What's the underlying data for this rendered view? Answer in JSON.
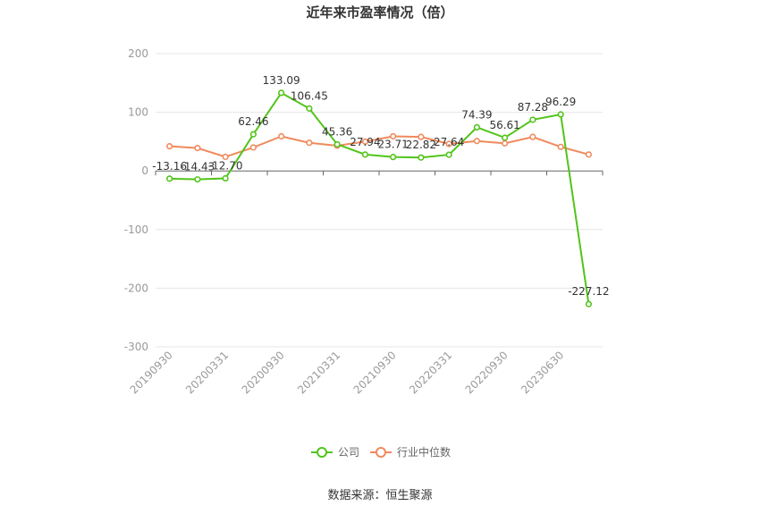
{
  "chart_data": {
    "type": "line",
    "title": "近年来市盈率情况（倍）",
    "source": "数据来源：恒生聚源",
    "ylim": [
      -300,
      200
    ],
    "yticks": [
      200,
      100,
      0,
      -100,
      -200,
      -300
    ],
    "xtick_labels": [
      "20190930",
      "20200331",
      "20200930",
      "20210331",
      "20210930",
      "20220331",
      "20220930",
      "20230630"
    ],
    "series": [
      {
        "name": "公司",
        "color": "#52c41a",
        "values": [
          -13.16,
          -14.43,
          -12.7,
          62.46,
          133.09,
          106.45,
          45.36,
          27.94,
          23.71,
          22.82,
          27.64,
          74.39,
          56.61,
          87.28,
          96.29,
          -227.12
        ],
        "labels": [
          "-13.16",
          "-14.43",
          "-12.70",
          "62.46",
          "133.09",
          "106.45",
          "45.36",
          "27.94",
          "23.71",
          "22.82",
          "27.64",
          "74.39",
          "56.61",
          "87.28",
          "96.29",
          "-227.12"
        ]
      },
      {
        "name": "行业中位数",
        "color": "#f08a5d",
        "values": [
          42,
          39,
          24,
          40,
          59,
          48,
          43,
          50,
          59,
          58,
          46,
          51,
          47,
          58,
          41,
          28
        ]
      }
    ],
    "legend_position": "bottom"
  }
}
